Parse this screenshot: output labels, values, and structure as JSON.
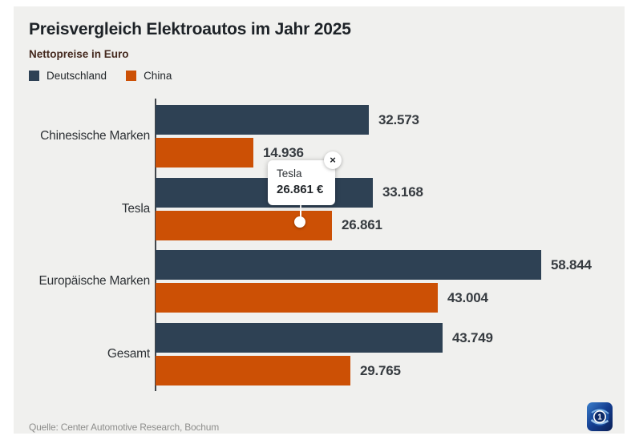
{
  "header": {
    "title": "Preisvergleich Elektroautos im Jahr 2025",
    "subtitle": "Nettopreise in Euro"
  },
  "chart_data": {
    "type": "bar",
    "orientation": "horizontal",
    "title": "Preisvergleich Elektroautos im Jahr 2025",
    "subtitle": "Nettopreise in Euro",
    "categories": [
      "Chinesische Marken",
      "Tesla",
      "Europäische Marken",
      "Gesamt"
    ],
    "series": [
      {
        "name": "Deutschland",
        "color": "#2e4154",
        "values": [
          32573,
          33168,
          58844,
          43749
        ],
        "labels": [
          "32.573",
          "33.168",
          "58.844",
          "43.749"
        ]
      },
      {
        "name": "China",
        "color": "#cc5005",
        "values": [
          14936,
          26861,
          43004,
          29765
        ],
        "labels": [
          "14.936",
          "26.861",
          "43.004",
          "29.765"
        ]
      }
    ],
    "xmax": 58844,
    "grid": false,
    "legend_position": "top-left",
    "value_format": "German thousands separator (dot)"
  },
  "tooltip": {
    "title": "Tesla",
    "value": "26.861 €",
    "close_label": "×",
    "target_series": "China",
    "target_category": "Tesla"
  },
  "footer": {
    "source": "Quelle: Center Automotive Research, Bochum"
  },
  "colors": {
    "panel_background": "#f0f0ee",
    "deutschland": "#2e4154",
    "china": "#cc5005",
    "subtitle_text": "#44291e",
    "logo_blue": "#143d8f"
  }
}
